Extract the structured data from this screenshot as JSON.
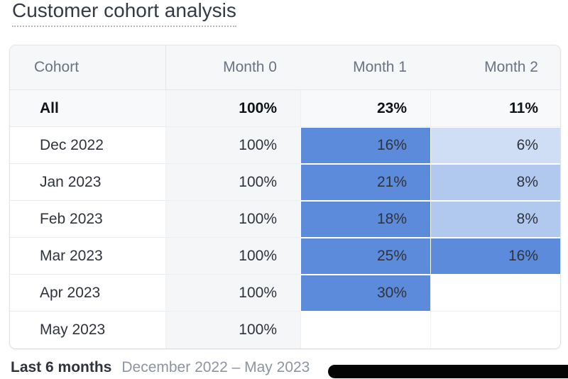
{
  "title": "Customer cohort analysis",
  "table": {
    "columns": [
      {
        "label": "Cohort",
        "align": "left"
      },
      {
        "label": "Month 0",
        "align": "right"
      },
      {
        "label": "Month 1",
        "align": "right"
      },
      {
        "label": "Month 2",
        "align": "right"
      }
    ],
    "rows": [
      {
        "cohort": "All",
        "emphasis": true,
        "cells": [
          {
            "value": "100%",
            "shade": "month0"
          },
          {
            "value": "23%",
            "shade": "none"
          },
          {
            "value": "11%",
            "shade": "none"
          }
        ]
      },
      {
        "cohort": "Dec 2022",
        "emphasis": false,
        "cells": [
          {
            "value": "100%",
            "shade": "month0"
          },
          {
            "value": "16%",
            "shade": "strong"
          },
          {
            "value": "6%",
            "shade": "light"
          }
        ]
      },
      {
        "cohort": "Jan 2023",
        "emphasis": false,
        "cells": [
          {
            "value": "100%",
            "shade": "month0"
          },
          {
            "value": "21%",
            "shade": "strong"
          },
          {
            "value": "8%",
            "shade": "medium"
          }
        ]
      },
      {
        "cohort": "Feb 2023",
        "emphasis": false,
        "cells": [
          {
            "value": "100%",
            "shade": "month0"
          },
          {
            "value": "18%",
            "shade": "strong"
          },
          {
            "value": "8%",
            "shade": "medium"
          }
        ]
      },
      {
        "cohort": "Mar 2023",
        "emphasis": false,
        "cells": [
          {
            "value": "100%",
            "shade": "month0"
          },
          {
            "value": "25%",
            "shade": "strong"
          },
          {
            "value": "16%",
            "shade": "strong"
          }
        ]
      },
      {
        "cohort": "Apr 2023",
        "emphasis": false,
        "cells": [
          {
            "value": "100%",
            "shade": "month0"
          },
          {
            "value": "30%",
            "shade": "strong"
          },
          {
            "value": "",
            "shade": "none"
          }
        ]
      },
      {
        "cohort": "May 2023",
        "emphasis": false,
        "cells": [
          {
            "value": "100%",
            "shade": "month0"
          },
          {
            "value": "",
            "shade": "none"
          },
          {
            "value": "",
            "shade": "none"
          }
        ]
      }
    ]
  },
  "heat_colors": {
    "strong": "#5c8bdb",
    "medium": "#b1c9ee",
    "light": "#cfdef5",
    "month0": "#f4f6f8"
  },
  "footer": {
    "range_label": "Last 6 months",
    "range_value": "December 2022 – May 2023"
  },
  "redaction": {
    "color": "#040404"
  }
}
